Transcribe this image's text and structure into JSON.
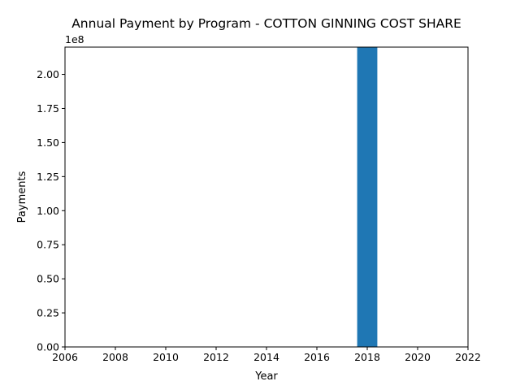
{
  "chart_data": {
    "type": "bar",
    "title": "Annual Payment by Program - COTTON GINNING COST SHARE",
    "xlabel": "Year",
    "ylabel": "Payments",
    "offset_label": "1e8",
    "xlim": [
      2006,
      2022
    ],
    "ylim": [
      0,
      220000000.0
    ],
    "x_ticks": [
      "2006",
      "2008",
      "2010",
      "2012",
      "2014",
      "2016",
      "2018",
      "2020",
      "2022"
    ],
    "y_ticks": [
      "0.00",
      "0.25",
      "0.50",
      "0.75",
      "1.00",
      "1.25",
      "1.50",
      "1.75",
      "2.00"
    ],
    "categories": [
      "2018"
    ],
    "values": [
      220000000.0
    ],
    "bar_color": "#1f77b4",
    "grid": false,
    "legend": "none"
  }
}
